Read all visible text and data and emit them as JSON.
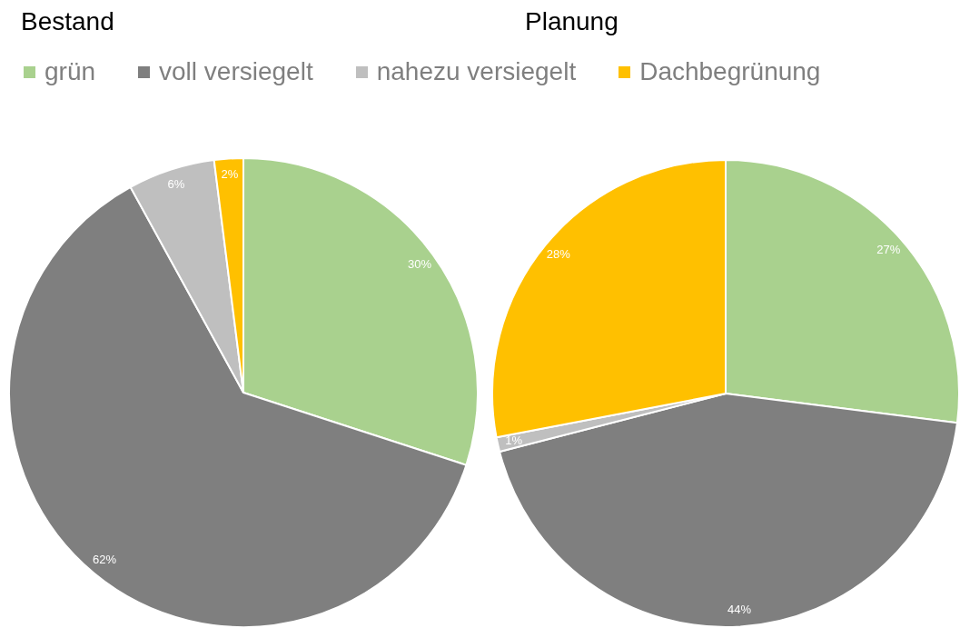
{
  "chart_data": [
    {
      "type": "pie",
      "title": "Bestand",
      "categories": [
        "grün",
        "voll versiegelt",
        "nahezu versiegelt",
        "Dachbegrünung"
      ],
      "values": [
        30,
        62,
        6,
        2
      ],
      "colors": [
        "#a9d18e",
        "#7f7f7f",
        "#bfbfbf",
        "#ffc000"
      ],
      "value_labels": [
        "30%",
        "62%",
        "6%",
        "2%"
      ],
      "legend": "top"
    },
    {
      "type": "pie",
      "title": "Planung",
      "categories": [
        null,
        null,
        null,
        null
      ],
      "values": [
        27,
        44,
        1,
        28
      ],
      "colors": [
        "#a9d18e",
        "#7f7f7f",
        "#bfbfbf",
        "#ffc000"
      ],
      "value_labels": [
        "27%",
        "44%",
        "1%",
        "28%"
      ]
    }
  ]
}
